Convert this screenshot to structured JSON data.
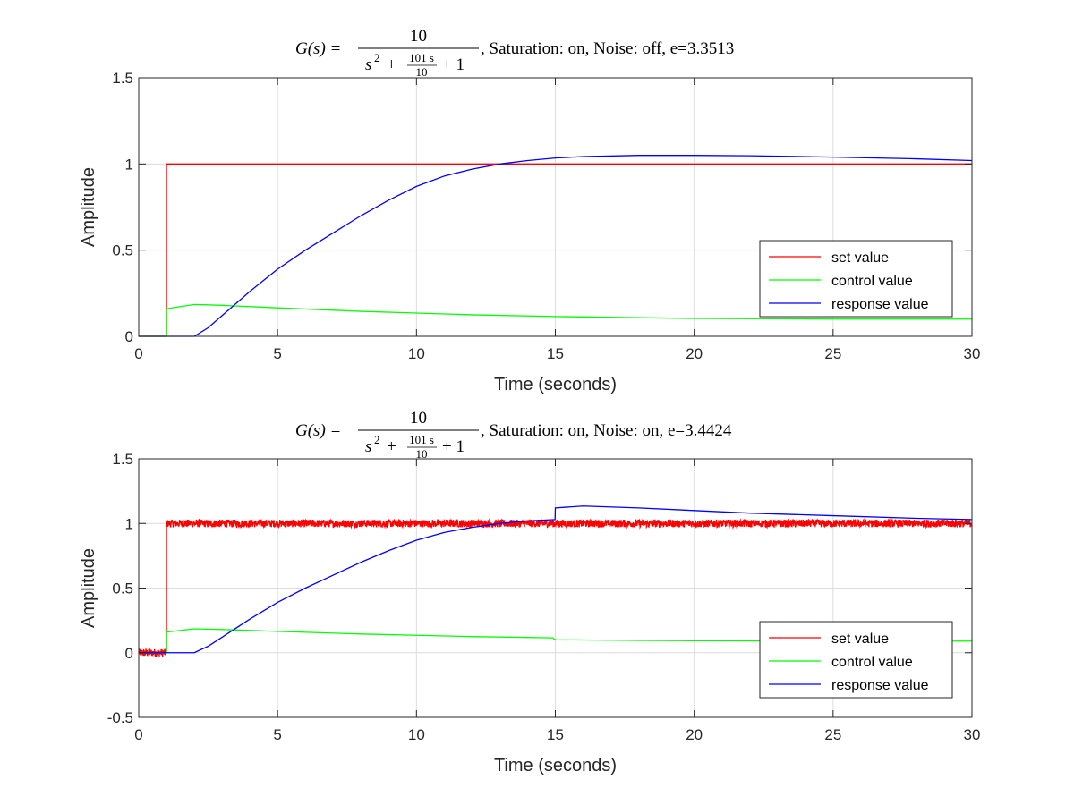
{
  "chart_data": [
    {
      "type": "line",
      "title_formula": {
        "lhs": "G(s) =",
        "numerator": "10",
        "den_s2": "s",
        "den_sup": "2",
        "den_plus1": "+",
        "den_frac_num": "101 s",
        "den_frac_den": "10",
        "den_plus2": "+ 1"
      },
      "title_suffix": ", Saturation: on, Noise: off, e=3.3513",
      "xlabel": "Time (seconds)",
      "ylabel": "Amplitude",
      "xlim": [
        0,
        30
      ],
      "ylim": [
        0,
        1.5
      ],
      "xticks": [
        0,
        5,
        10,
        15,
        20,
        25,
        30
      ],
      "yticks": [
        0,
        0.5,
        1,
        1.5
      ],
      "xtick_labels": [
        "0",
        "5",
        "10",
        "15",
        "20",
        "25",
        "30"
      ],
      "ytick_labels": [
        "0",
        "0.5",
        "1",
        "1.5"
      ],
      "grid": true,
      "legend_position": "lower-right",
      "series": [
        {
          "name": "set value",
          "color": "#ff0000",
          "points": [
            [
              0,
              0
            ],
            [
              1,
              0
            ],
            [
              1,
              1
            ],
            [
              30,
              1
            ]
          ]
        },
        {
          "name": "control value",
          "color": "#00ff00",
          "points": [
            [
              0,
              0
            ],
            [
              1,
              0
            ],
            [
              1,
              0.16
            ],
            [
              2,
              0.185
            ],
            [
              3,
              0.18
            ],
            [
              5,
              0.165
            ],
            [
              8,
              0.145
            ],
            [
              10,
              0.135
            ],
            [
              12,
              0.125
            ],
            [
              15,
              0.115
            ],
            [
              18,
              0.108
            ],
            [
              20,
              0.104
            ],
            [
              25,
              0.1
            ],
            [
              30,
              0.1
            ]
          ]
        },
        {
          "name": "response value",
          "color": "#0000ff",
          "points": [
            [
              0,
              0
            ],
            [
              2,
              0
            ],
            [
              2.5,
              0.05
            ],
            [
              3,
              0.12
            ],
            [
              4,
              0.26
            ],
            [
              5,
              0.39
            ],
            [
              6,
              0.5
            ],
            [
              7,
              0.6
            ],
            [
              8,
              0.7
            ],
            [
              9,
              0.79
            ],
            [
              10,
              0.87
            ],
            [
              11,
              0.93
            ],
            [
              12,
              0.97
            ],
            [
              13,
              1.0
            ],
            [
              14,
              1.02
            ],
            [
              15,
              1.035
            ],
            [
              16,
              1.043
            ],
            [
              18,
              1.05
            ],
            [
              20,
              1.05
            ],
            [
              22,
              1.048
            ],
            [
              25,
              1.04
            ],
            [
              28,
              1.03
            ],
            [
              30,
              1.02
            ]
          ]
        }
      ]
    },
    {
      "type": "line",
      "title_formula": {
        "lhs": "G(s) =",
        "numerator": "10",
        "den_s2": "s",
        "den_sup": "2",
        "den_plus1": "+",
        "den_frac_num": "101 s",
        "den_frac_den": "10",
        "den_plus2": "+ 1"
      },
      "title_suffix": ", Saturation: on, Noise: on, e=3.4424",
      "xlabel": "Time (seconds)",
      "ylabel": "Amplitude",
      "xlim": [
        0,
        30
      ],
      "ylim": [
        -0.5,
        1.5
      ],
      "xticks": [
        0,
        5,
        10,
        15,
        20,
        25,
        30
      ],
      "yticks": [
        -0.5,
        0,
        0.5,
        1,
        1.5
      ],
      "xtick_labels": [
        "0",
        "5",
        "10",
        "15",
        "20",
        "25",
        "30"
      ],
      "ytick_labels": [
        "-0.5",
        "0",
        "0.5",
        "1",
        "1.5"
      ],
      "grid": true,
      "legend_position": "lower-right",
      "series": [
        {
          "name": "set value",
          "color": "#ff0000",
          "noise_amplitude": 0.025,
          "points": [
            [
              0,
              0
            ],
            [
              1,
              0
            ],
            [
              1,
              1
            ],
            [
              30,
              1
            ]
          ]
        },
        {
          "name": "control value",
          "color": "#00ff00",
          "points": [
            [
              0,
              0
            ],
            [
              1,
              0
            ],
            [
              1,
              0.16
            ],
            [
              2,
              0.185
            ],
            [
              3,
              0.18
            ],
            [
              5,
              0.165
            ],
            [
              8,
              0.145
            ],
            [
              10,
              0.135
            ],
            [
              12,
              0.125
            ],
            [
              14.9,
              0.115
            ],
            [
              15,
              0.1
            ],
            [
              18,
              0.095
            ],
            [
              20,
              0.093
            ],
            [
              25,
              0.09
            ],
            [
              30,
              0.09
            ]
          ]
        },
        {
          "name": "response value",
          "color": "#0000ff",
          "points": [
            [
              0,
              0
            ],
            [
              2,
              0
            ],
            [
              2.5,
              0.05
            ],
            [
              3,
              0.12
            ],
            [
              4,
              0.26
            ],
            [
              5,
              0.39
            ],
            [
              6,
              0.5
            ],
            [
              7,
              0.6
            ],
            [
              8,
              0.7
            ],
            [
              9,
              0.79
            ],
            [
              10,
              0.87
            ],
            [
              11,
              0.93
            ],
            [
              12,
              0.97
            ],
            [
              13,
              1.0
            ],
            [
              14,
              1.02
            ],
            [
              14.99,
              1.03
            ],
            [
              15,
              1.12
            ],
            [
              16,
              1.135
            ],
            [
              18,
              1.12
            ],
            [
              20,
              1.1
            ],
            [
              22,
              1.08
            ],
            [
              25,
              1.06
            ],
            [
              28,
              1.04
            ],
            [
              30,
              1.03
            ]
          ]
        }
      ]
    }
  ]
}
